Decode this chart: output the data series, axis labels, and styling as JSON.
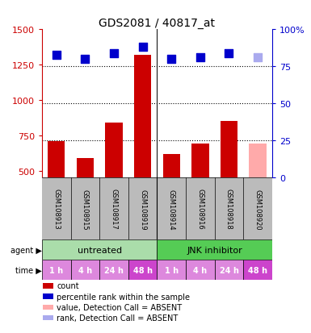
{
  "title": "GDS2081 / 40817_at",
  "samples": [
    "GSM108913",
    "GSM108915",
    "GSM108917",
    "GSM108919",
    "GSM108914",
    "GSM108916",
    "GSM108918",
    "GSM108920"
  ],
  "bar_values": [
    710,
    590,
    840,
    1320,
    620,
    690,
    850,
    690
  ],
  "bar_colors": [
    "#cc0000",
    "#cc0000",
    "#cc0000",
    "#cc0000",
    "#cc0000",
    "#cc0000",
    "#cc0000",
    "#ffaaaa"
  ],
  "dot_values_pct": [
    83,
    80,
    84,
    88,
    80,
    81,
    84,
    81
  ],
  "dot_colors": [
    "#0000cc",
    "#0000cc",
    "#0000cc",
    "#0000cc",
    "#0000cc",
    "#0000cc",
    "#0000cc",
    "#aaaaee"
  ],
  "ylim_left": [
    450,
    1500
  ],
  "yticks_left": [
    500,
    750,
    1000,
    1250,
    1500
  ],
  "ytick_labels_left": [
    "500",
    "750",
    "1000",
    "1250",
    "1500"
  ],
  "ylim_right": [
    0,
    100
  ],
  "yticks_right": [
    0,
    25,
    50,
    75,
    100
  ],
  "ytick_labels_right": [
    "0",
    "25",
    "50",
    "75",
    "100%"
  ],
  "gridlines_pct": [
    25,
    50,
    75
  ],
  "agent_labels": [
    {
      "text": "untreated",
      "start": 0,
      "end": 4,
      "color": "#aaddaa"
    },
    {
      "text": "JNK inhibitor",
      "start": 4,
      "end": 8,
      "color": "#55cc55"
    }
  ],
  "time_labels": [
    "1 h",
    "4 h",
    "24 h",
    "48 h",
    "1 h",
    "4 h",
    "24 h",
    "48 h"
  ],
  "time_colors": [
    "#dd88dd",
    "#dd88dd",
    "#dd88dd",
    "#cc44cc",
    "#dd88dd",
    "#dd88dd",
    "#dd88dd",
    "#cc44cc"
  ],
  "legend_items": [
    {
      "label": "count",
      "color": "#cc0000"
    },
    {
      "label": "percentile rank within the sample",
      "color": "#0000cc"
    },
    {
      "label": "value, Detection Call = ABSENT",
      "color": "#ffaaaa"
    },
    {
      "label": "rank, Detection Call = ABSENT",
      "color": "#aaaaee"
    }
  ],
  "bar_width": 0.6,
  "dot_size": 45,
  "left_color": "#cc0000",
  "right_color": "#0000cc",
  "sample_area_color": "#bbbbbb",
  "n_samples": 8
}
